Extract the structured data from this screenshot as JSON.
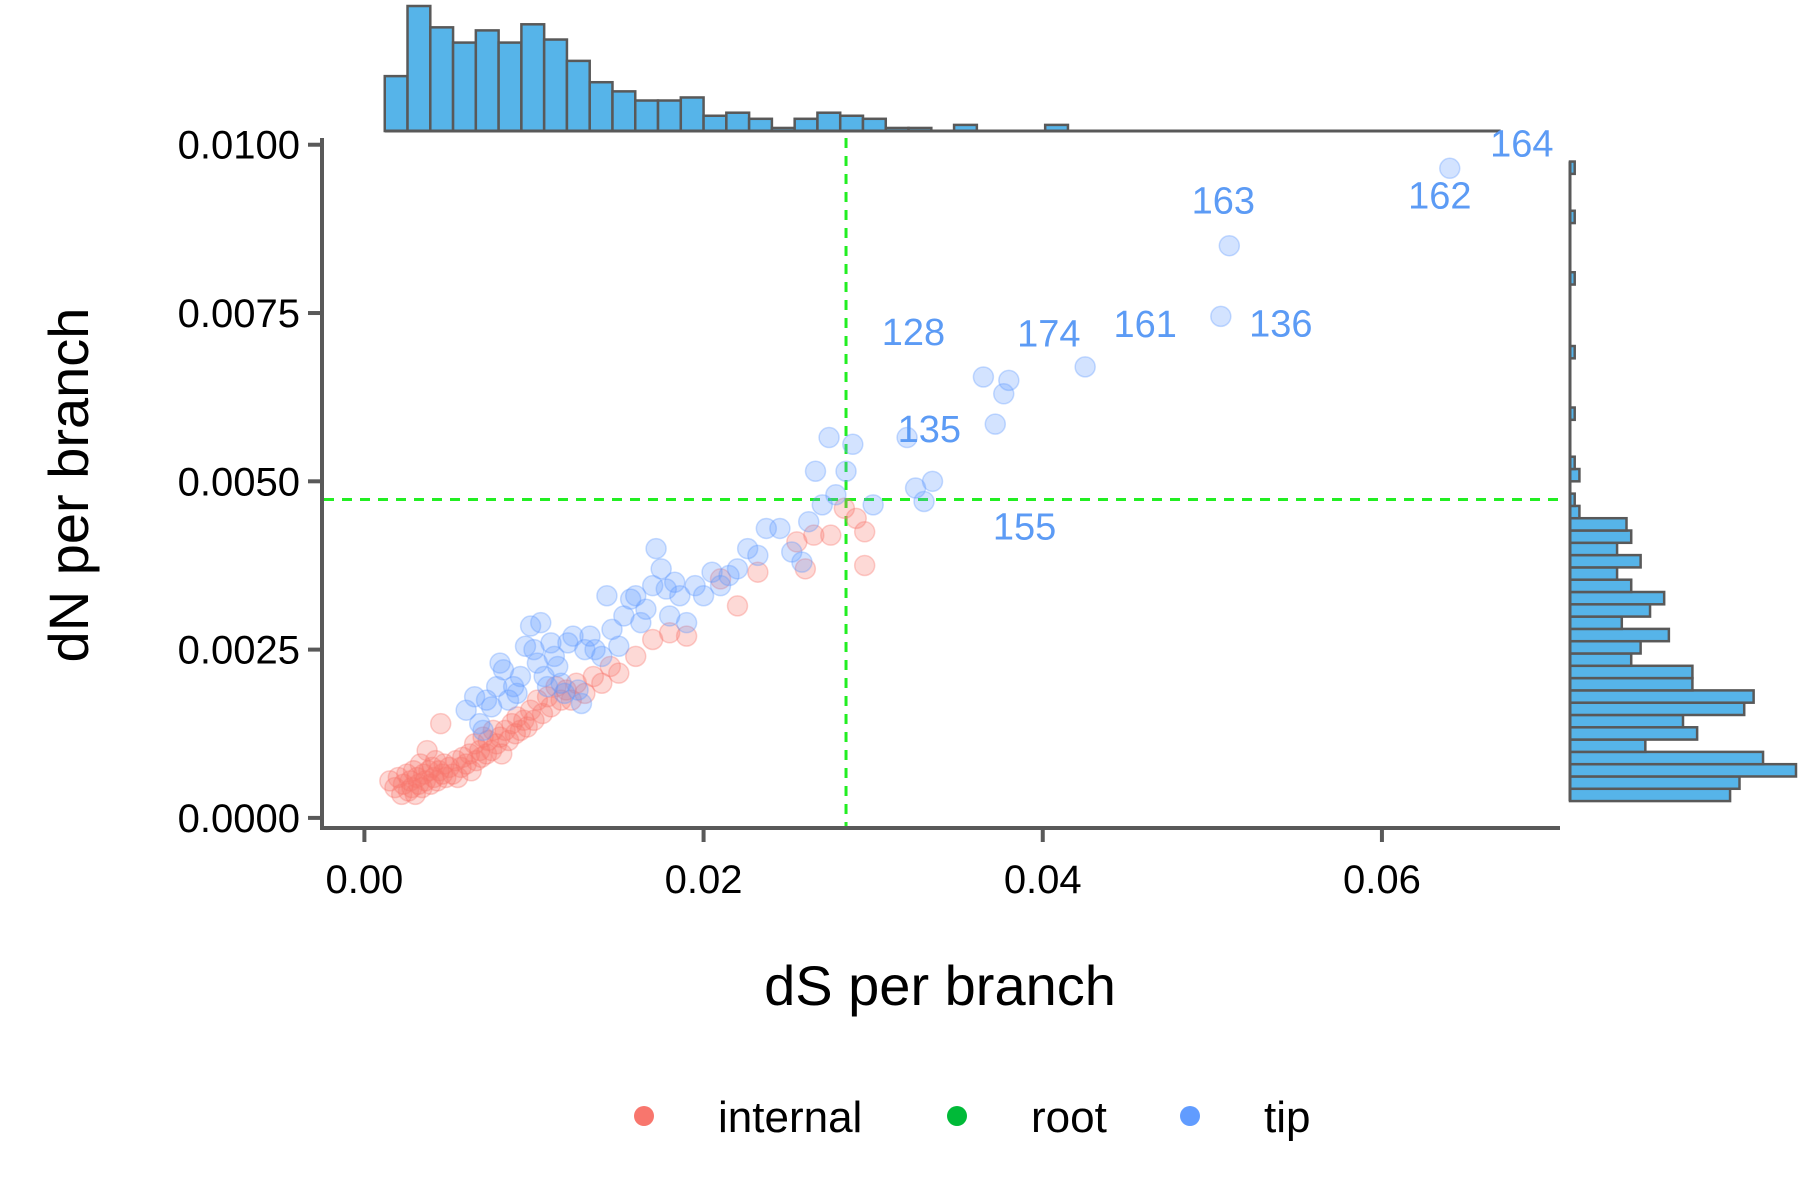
{
  "chart_data": {
    "type": "scatter",
    "xlabel": "dS per branch",
    "ylabel": "dN per branch",
    "xlim": [
      -0.0025,
      0.0705
    ],
    "ylim": [
      -0.00015,
      0.0101
    ],
    "x_ticks": [
      0.0,
      0.02,
      0.04,
      0.06
    ],
    "x_tick_labels": [
      "0.00",
      "0.02",
      "0.04",
      "0.06"
    ],
    "y_ticks": [
      0.0,
      0.0025,
      0.005,
      0.0075,
      0.01
    ],
    "y_tick_labels": [
      "0.0000",
      "0.0025",
      "0.0050",
      "0.0075",
      "0.0100"
    ],
    "reference_lines": {
      "x": 0.0284,
      "y": 0.00473,
      "color": "#22ee22",
      "style": "dashed"
    },
    "grid": false,
    "legend": {
      "position": "bottom",
      "entries": [
        {
          "label": "internal",
          "color": "#f8766d"
        },
        {
          "label": "root",
          "color": "#00ba38"
        },
        {
          "label": "tip",
          "color": "#619cff"
        }
      ]
    },
    "colors": {
      "internal": "#f8766d",
      "root": "#00ba38",
      "tip": "#619cff",
      "histogram_fill": "#56b4e9",
      "histogram_stroke": "#595959",
      "label_text": "#5c9bf5"
    },
    "series": [
      {
        "name": "internal",
        "points": [
          [
            0.0015,
            0.00055
          ],
          [
            0.0018,
            0.00045
          ],
          [
            0.002,
            0.0006
          ],
          [
            0.0022,
            0.00035
          ],
          [
            0.0023,
            0.0005
          ],
          [
            0.0025,
            0.00065
          ],
          [
            0.0026,
            0.0004
          ],
          [
            0.0027,
            0.00055
          ],
          [
            0.0028,
            0.00045
          ],
          [
            0.0029,
            0.0007
          ],
          [
            0.003,
            0.00035
          ],
          [
            0.0031,
            0.0006
          ],
          [
            0.0032,
            0.0005
          ],
          [
            0.0033,
            0.0008
          ],
          [
            0.0034,
            0.00045
          ],
          [
            0.0035,
            0.00065
          ],
          [
            0.0036,
            0.00055
          ],
          [
            0.0037,
            0.001
          ],
          [
            0.0038,
            0.0007
          ],
          [
            0.0039,
            0.0005
          ],
          [
            0.004,
            0.00075
          ],
          [
            0.0041,
            0.0006
          ],
          [
            0.0042,
            0.00085
          ],
          [
            0.0043,
            0.00055
          ],
          [
            0.0044,
            0.0007
          ],
          [
            0.0045,
            0.0014
          ],
          [
            0.0046,
            0.00065
          ],
          [
            0.0047,
            0.0008
          ],
          [
            0.0048,
            0.0006
          ],
          [
            0.005,
            0.00075
          ],
          [
            0.0052,
            0.00065
          ],
          [
            0.0054,
            0.00085
          ],
          [
            0.0055,
            0.0006
          ],
          [
            0.0057,
            0.00075
          ],
          [
            0.0058,
            0.0009
          ],
          [
            0.006,
            0.0008
          ],
          [
            0.0062,
            0.00095
          ],
          [
            0.0063,
            0.0007
          ],
          [
            0.0065,
            0.0011
          ],
          [
            0.0066,
            0.00085
          ],
          [
            0.0068,
            0.001
          ],
          [
            0.0069,
            0.0009
          ],
          [
            0.007,
            0.0012
          ],
          [
            0.0072,
            0.00095
          ],
          [
            0.0073,
            0.00115
          ],
          [
            0.0075,
            0.001
          ],
          [
            0.0076,
            0.0013
          ],
          [
            0.0078,
            0.0011
          ],
          [
            0.008,
            0.0012
          ],
          [
            0.0081,
            0.00095
          ],
          [
            0.0083,
            0.0013
          ],
          [
            0.0085,
            0.00115
          ],
          [
            0.0087,
            0.0014
          ],
          [
            0.0089,
            0.00125
          ],
          [
            0.009,
            0.0015
          ],
          [
            0.0092,
            0.0013
          ],
          [
            0.0094,
            0.00145
          ],
          [
            0.0096,
            0.00135
          ],
          [
            0.0098,
            0.0016
          ],
          [
            0.01,
            0.00145
          ],
          [
            0.0102,
            0.00175
          ],
          [
            0.0105,
            0.00155
          ],
          [
            0.0108,
            0.0018
          ],
          [
            0.011,
            0.00165
          ],
          [
            0.0113,
            0.00195
          ],
          [
            0.0116,
            0.00175
          ],
          [
            0.0119,
            0.0019
          ],
          [
            0.0122,
            0.00175
          ],
          [
            0.0125,
            0.002
          ],
          [
            0.013,
            0.00185
          ],
          [
            0.0135,
            0.0021
          ],
          [
            0.014,
            0.002
          ],
          [
            0.0145,
            0.00225
          ],
          [
            0.015,
            0.00215
          ],
          [
            0.016,
            0.0024
          ],
          [
            0.017,
            0.00265
          ],
          [
            0.018,
            0.00275
          ],
          [
            0.019,
            0.0027
          ],
          [
            0.021,
            0.00355
          ],
          [
            0.022,
            0.00315
          ],
          [
            0.0232,
            0.00365
          ],
          [
            0.0255,
            0.0041
          ],
          [
            0.026,
            0.0037
          ],
          [
            0.0265,
            0.0042
          ],
          [
            0.0275,
            0.0042
          ],
          [
            0.0283,
            0.0046
          ],
          [
            0.029,
            0.00445
          ],
          [
            0.0295,
            0.00425
          ],
          [
            0.0295,
            0.00375
          ]
        ]
      },
      {
        "name": "tip",
        "points": [
          [
            0.006,
            0.0016
          ],
          [
            0.0065,
            0.0018
          ],
          [
            0.0068,
            0.0014
          ],
          [
            0.007,
            0.0013
          ],
          [
            0.0072,
            0.00175
          ],
          [
            0.0075,
            0.00165
          ],
          [
            0.0078,
            0.00195
          ],
          [
            0.008,
            0.0023
          ],
          [
            0.0082,
            0.0022
          ],
          [
            0.0085,
            0.00175
          ],
          [
            0.0088,
            0.00195
          ],
          [
            0.009,
            0.00185
          ],
          [
            0.0092,
            0.0021
          ],
          [
            0.0095,
            0.00255
          ],
          [
            0.0098,
            0.00285
          ],
          [
            0.01,
            0.0025
          ],
          [
            0.0102,
            0.0023
          ],
          [
            0.0104,
            0.0029
          ],
          [
            0.0106,
            0.0021
          ],
          [
            0.0108,
            0.00195
          ],
          [
            0.011,
            0.0026
          ],
          [
            0.0112,
            0.0024
          ],
          [
            0.0114,
            0.00225
          ],
          [
            0.0116,
            0.002
          ],
          [
            0.0118,
            0.00185
          ],
          [
            0.012,
            0.0026
          ],
          [
            0.0123,
            0.0027
          ],
          [
            0.0126,
            0.0019
          ],
          [
            0.0128,
            0.0017
          ],
          [
            0.013,
            0.0025
          ],
          [
            0.0133,
            0.0027
          ],
          [
            0.0136,
            0.0025
          ],
          [
            0.014,
            0.0024
          ],
          [
            0.0143,
            0.0033
          ],
          [
            0.0146,
            0.0028
          ],
          [
            0.015,
            0.00255
          ],
          [
            0.0153,
            0.003
          ],
          [
            0.0157,
            0.00325
          ],
          [
            0.016,
            0.0033
          ],
          [
            0.0163,
            0.0029
          ],
          [
            0.0166,
            0.0031
          ],
          [
            0.017,
            0.00345
          ],
          [
            0.0172,
            0.004
          ],
          [
            0.0175,
            0.0037
          ],
          [
            0.0178,
            0.0034
          ],
          [
            0.018,
            0.003
          ],
          [
            0.0183,
            0.0035
          ],
          [
            0.0186,
            0.0033
          ],
          [
            0.019,
            0.0029
          ],
          [
            0.0195,
            0.00345
          ],
          [
            0.02,
            0.0033
          ],
          [
            0.0205,
            0.00365
          ],
          [
            0.021,
            0.00345
          ],
          [
            0.0215,
            0.0036
          ],
          [
            0.022,
            0.0037
          ],
          [
            0.0226,
            0.004
          ],
          [
            0.0232,
            0.0039
          ],
          [
            0.0237,
            0.0043
          ],
          [
            0.0245,
            0.0043
          ],
          [
            0.0252,
            0.00395
          ],
          [
            0.0258,
            0.0038
          ],
          [
            0.0262,
            0.0044
          ],
          [
            0.0266,
            0.00515
          ],
          [
            0.027,
            0.00465
          ],
          [
            0.0274,
            0.00565
          ],
          [
            0.0278,
            0.0048
          ],
          [
            0.0284,
            0.00515
          ],
          [
            0.0288,
            0.00555
          ],
          [
            0.03,
            0.00465
          ],
          [
            0.032,
            0.00565
          ],
          [
            0.0325,
            0.0049
          ],
          [
            0.033,
            0.0047
          ],
          [
            0.0335,
            0.005
          ],
          [
            0.0365,
            0.00655
          ],
          [
            0.0372,
            0.00585
          ],
          [
            0.0377,
            0.0063
          ],
          [
            0.038,
            0.0065
          ],
          [
            0.0425,
            0.0067
          ],
          [
            0.0505,
            0.00745
          ],
          [
            0.051,
            0.0085
          ],
          [
            0.064,
            0.00965
          ]
        ]
      },
      {
        "name": "root",
        "points": []
      }
    ],
    "point_labels": [
      {
        "text": "164",
        "x": 0.064,
        "y": 0.00965
      },
      {
        "text": "162",
        "x": 0.064,
        "y": 0.00965
      },
      {
        "text": "163",
        "x": 0.051,
        "y": 0.0085
      },
      {
        "text": "136",
        "x": 0.0505,
        "y": 0.00745
      },
      {
        "text": "161",
        "x": 0.0425,
        "y": 0.0067
      },
      {
        "text": "174",
        "x": 0.038,
        "y": 0.0065
      },
      {
        "text": "128",
        "x": 0.0365,
        "y": 0.00655
      },
      {
        "text": "135",
        "x": 0.0372,
        "y": 0.00585
      },
      {
        "text": "155",
        "x": 0.0335,
        "y": 0.005
      }
    ],
    "marginal_x_histogram": {
      "range": [
        0.0012,
        0.067
      ],
      "counts": [
        18,
        41,
        34,
        29,
        33,
        29,
        35,
        30,
        23,
        16,
        13,
        10,
        10,
        11,
        5,
        6,
        4,
        1,
        4,
        6,
        5,
        4,
        1,
        1,
        0,
        2,
        0,
        0,
        0,
        2,
        0,
        0,
        0,
        0,
        0,
        0,
        0,
        0,
        0,
        0,
        0,
        0,
        0,
        0,
        0,
        0,
        0,
        0,
        0
      ]
    },
    "marginal_y_histogram": {
      "range": [
        0.00025,
        0.00975
      ],
      "counts": [
        34,
        36,
        48,
        41,
        16,
        27,
        24,
        37,
        39,
        26,
        26,
        13,
        15,
        21,
        11,
        17,
        20,
        13,
        10,
        15,
        10,
        13,
        12,
        2,
        1,
        0,
        2,
        1,
        0,
        0,
        0,
        1,
        0,
        0,
        0,
        0,
        1,
        0,
        0,
        0,
        0,
        0,
        1,
        0,
        0,
        0,
        0,
        1,
        0,
        0,
        0,
        1
      ]
    }
  }
}
